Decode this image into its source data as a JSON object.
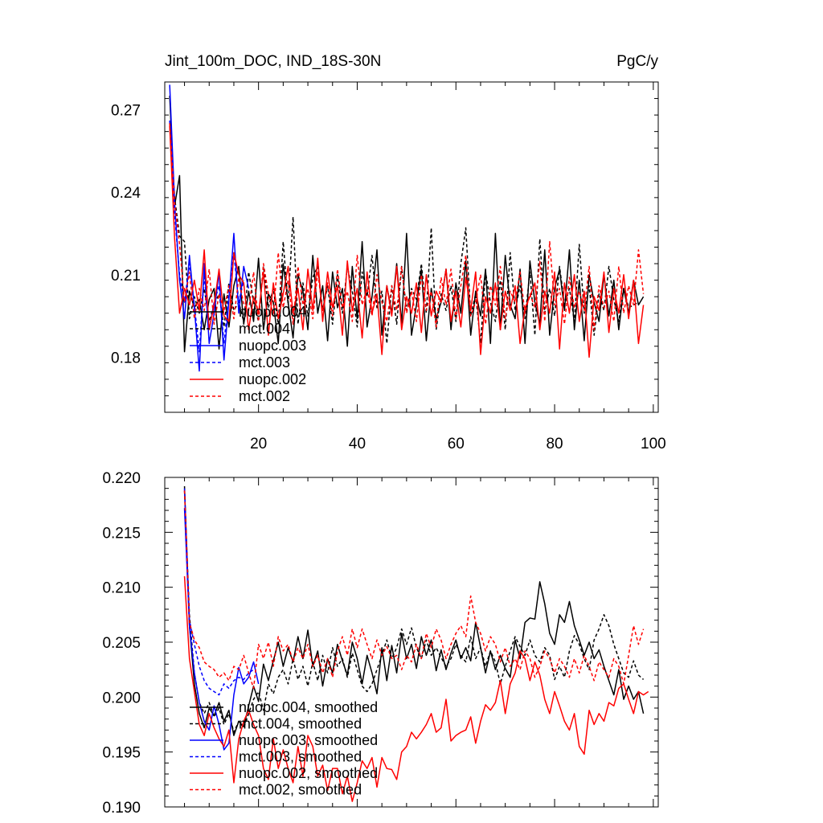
{
  "chart_data": [
    {
      "type": "line",
      "title": "Jint_100m_DOC, IND_18S-30N",
      "units": "PgC/y",
      "xlim": [
        1,
        101
      ],
      "ylim": [
        0.16,
        0.28
      ],
      "xticks": [
        20,
        40,
        60,
        80,
        100
      ],
      "yticks": [
        0.18,
        0.21,
        0.24,
        0.27
      ],
      "ytick_labels": [
        "0.18",
        "0.21",
        "0.24",
        "0.27"
      ],
      "legend_position": "lower-left",
      "series": [
        {
          "name": "nuopc.004",
          "color": "#000000",
          "dash": false,
          "start": 2,
          "values": [
            0.275,
            0.235,
            0.246,
            0.182,
            0.204,
            0.198,
            0.201,
            0.19,
            0.201,
            0.205,
            0.183,
            0.203,
            0.191,
            0.206,
            0.213,
            0.192,
            0.204,
            0.193,
            0.216,
            0.19,
            0.203,
            0.2,
            0.185,
            0.214,
            0.2,
            0.187,
            0.21,
            0.204,
            0.19,
            0.217,
            0.196,
            0.206,
            0.186,
            0.211,
            0.198,
            0.205,
            0.184,
            0.213,
            0.194,
            0.222,
            0.191,
            0.202,
            0.219,
            0.188,
            0.206,
            0.196,
            0.214,
            0.192,
            0.225,
            0.188,
            0.199,
            0.212,
            0.186,
            0.205,
            0.194,
            0.2,
            0.212,
            0.19,
            0.207,
            0.196,
            0.215,
            0.188,
            0.204,
            0.195,
            0.212,
            0.185,
            0.225,
            0.19,
            0.217,
            0.199,
            0.194,
            0.212,
            0.185,
            0.215,
            0.2,
            0.192,
            0.219,
            0.188,
            0.205,
            0.212,
            0.197,
            0.219,
            0.19,
            0.208,
            0.186,
            0.21,
            0.2,
            0.193,
            0.21,
            0.195,
            0.208,
            0.19,
            0.205,
            0.196,
            0.208,
            0.199,
            0.202
          ]
        },
        {
          "name": "mct.004",
          "color": "#000000",
          "dash": true,
          "start": 2,
          "values": [
            0.265,
            0.238,
            0.224,
            0.222,
            0.194,
            0.202,
            0.196,
            0.205,
            0.193,
            0.199,
            0.203,
            0.191,
            0.207,
            0.197,
            0.2,
            0.193,
            0.211,
            0.2,
            0.193,
            0.213,
            0.198,
            0.205,
            0.192,
            0.222,
            0.199,
            0.231,
            0.192,
            0.207,
            0.195,
            0.209,
            0.213,
            0.197,
            0.206,
            0.192,
            0.21,
            0.196,
            0.213,
            0.204,
            0.191,
            0.211,
            0.202,
            0.217,
            0.198,
            0.204,
            0.185,
            0.206,
            0.192,
            0.213,
            0.197,
            0.205,
            0.201,
            0.214,
            0.196,
            0.227,
            0.19,
            0.203,
            0.197,
            0.206,
            0.193,
            0.214,
            0.227,
            0.195,
            0.203,
            0.185,
            0.211,
            0.2,
            0.193,
            0.208,
            0.19,
            0.218,
            0.197,
            0.206,
            0.194,
            0.211,
            0.188,
            0.223,
            0.196,
            0.205,
            0.195,
            0.213,
            0.199,
            0.205,
            0.193,
            0.221,
            0.196,
            0.206,
            0.188,
            0.203,
            0.197,
            0.213,
            0.201,
            0.193,
            0.205,
            0.198,
            0.199,
            0.2
          ]
        },
        {
          "name": "nuopc.003",
          "color": "#0000ff",
          "dash": false,
          "start": 2,
          "values": [
            0.279,
            0.236,
            0.208,
            0.194,
            0.217,
            0.198,
            0.175,
            0.214,
            0.185,
            0.196,
            0.211,
            0.179,
            0.201,
            0.225,
            0.196,
            0.213,
            0.205
          ]
        },
        {
          "name": "mct.003",
          "color": "#0000ff",
          "dash": true,
          "start": 2,
          "values": [
            0.266,
            0.232,
            0.21,
            0.2,
            0.214,
            0.199,
            0.182,
            0.21,
            0.19,
            0.2,
            0.206,
            0.185,
            0.203,
            0.218,
            0.2,
            0.208
          ]
        },
        {
          "name": "nuopc.002",
          "color": "#ff0000",
          "dash": false,
          "start": 2,
          "values": [
            0.264,
            0.223,
            0.196,
            0.205,
            0.199,
            0.208,
            0.197,
            0.219,
            0.19,
            0.199,
            0.212,
            0.195,
            0.193,
            0.218,
            0.21,
            0.207,
            0.19,
            0.202,
            0.196,
            0.211,
            0.188,
            0.207,
            0.194,
            0.203,
            0.213,
            0.196,
            0.205,
            0.19,
            0.212,
            0.197,
            0.216,
            0.193,
            0.211,
            0.198,
            0.206,
            0.188,
            0.215,
            0.197,
            0.205,
            0.187,
            0.211,
            0.196,
            0.203,
            0.181,
            0.206,
            0.195,
            0.213,
            0.19,
            0.202,
            0.196,
            0.207,
            0.189,
            0.21,
            0.195,
            0.204,
            0.2,
            0.212,
            0.193,
            0.204,
            0.191,
            0.209,
            0.197,
            0.211,
            0.181,
            0.202,
            0.196,
            0.207,
            0.19,
            0.204,
            0.197,
            0.206,
            0.185,
            0.198,
            0.202,
            0.207,
            0.19,
            0.204,
            0.196,
            0.211,
            0.183,
            0.207,
            0.196,
            0.21,
            0.193,
            0.204,
            0.18,
            0.202,
            0.197,
            0.211,
            0.189,
            0.205,
            0.196,
            0.21,
            0.194,
            0.208,
            0.185,
            0.199
          ]
        },
        {
          "name": "mct.002",
          "color": "#ff0000",
          "dash": true,
          "start": 2,
          "values": [
            0.265,
            0.236,
            0.221,
            0.2,
            0.211,
            0.194,
            0.205,
            0.197,
            0.212,
            0.192,
            0.203,
            0.197,
            0.206,
            0.194,
            0.209,
            0.199,
            0.197,
            0.211,
            0.193,
            0.214,
            0.203,
            0.195,
            0.218,
            0.198,
            0.208,
            0.192,
            0.213,
            0.199,
            0.205,
            0.194,
            0.211,
            0.197,
            0.207,
            0.195,
            0.212,
            0.198,
            0.204,
            0.193,
            0.217,
            0.199,
            0.205,
            0.195,
            0.21,
            0.2,
            0.193,
            0.206,
            0.197,
            0.213,
            0.196,
            0.204,
            0.193,
            0.21,
            0.197,
            0.204,
            0.191,
            0.209,
            0.199,
            0.212,
            0.194,
            0.206,
            0.217,
            0.195,
            0.2,
            0.21,
            0.192,
            0.206,
            0.199,
            0.213,
            0.194,
            0.204,
            0.2,
            0.211,
            0.196,
            0.203,
            0.198,
            0.215,
            0.193,
            0.222,
            0.199,
            0.205,
            0.192,
            0.209,
            0.198,
            0.204,
            0.197,
            0.213,
            0.19,
            0.206,
            0.198,
            0.204,
            0.193,
            0.213,
            0.196,
            0.206,
            0.199,
            0.219,
            0.203
          ]
        }
      ]
    },
    {
      "type": "line",
      "title": "",
      "xlim": [
        1,
        101
      ],
      "ylim": [
        0.19,
        0.22
      ],
      "xticks": [
        20,
        40,
        60,
        80,
        100
      ],
      "yticks": [
        0.19,
        0.195,
        0.2,
        0.205,
        0.21,
        0.215,
        0.22
      ],
      "ytick_labels": [
        "0.190",
        "0.195",
        "0.200",
        "0.205",
        "0.210",
        "0.215",
        "0.220"
      ],
      "legend_position": "lower-left",
      "series": [
        {
          "name": "nuopc.004, smoothed",
          "color": "#000000",
          "dash": false,
          "start": 5,
          "values": [
            0.2192,
            0.2065,
            0.2012,
            0.1985,
            0.1972,
            0.199,
            0.1983,
            0.1995,
            0.1978,
            0.1988,
            0.1965,
            0.1978,
            0.1973,
            0.1992,
            0.201,
            0.1996,
            0.203,
            0.2015,
            0.2033,
            0.205,
            0.2028,
            0.2045,
            0.2032,
            0.2055,
            0.2035,
            0.2061,
            0.2028,
            0.2042,
            0.201,
            0.2035,
            0.2022,
            0.2048,
            0.2033,
            0.202,
            0.205,
            0.2035,
            0.2012,
            0.2038,
            0.2022,
            0.2003,
            0.2045,
            0.2015,
            0.2047,
            0.2022,
            0.2058,
            0.2035,
            0.2048,
            0.2026,
            0.2055,
            0.2038,
            0.2052,
            0.2024,
            0.2043,
            0.2025,
            0.204,
            0.2052,
            0.2035,
            0.2045,
            0.2033,
            0.2068,
            0.2045,
            0.2022,
            0.2042,
            0.2025,
            0.2038,
            0.2026,
            0.2018,
            0.2052,
            0.2035,
            0.2068,
            0.2072,
            0.2071,
            0.2105,
            0.2085,
            0.2058,
            0.2048,
            0.2075,
            0.2068,
            0.2087,
            0.2065,
            0.2052,
            0.2038,
            0.205,
            0.2035,
            0.2043,
            0.2028,
            0.2015,
            0.2002,
            0.2025,
            0.1998,
            0.201,
            0.1998,
            0.2005,
            0.1985
          ]
        },
        {
          "name": "mct.004, smoothed",
          "color": "#000000",
          "dash": true,
          "start": 5,
          "values": [
            0.2188,
            0.2075,
            0.2022,
            0.1995,
            0.1985,
            0.1995,
            0.1982,
            0.199,
            0.1975,
            0.1985,
            0.1968,
            0.1978,
            0.1972,
            0.1985,
            0.1998,
            0.2005,
            0.1988,
            0.2012,
            0.2003,
            0.2018,
            0.2025,
            0.2012,
            0.2035,
            0.2016,
            0.2028,
            0.201,
            0.2032,
            0.2015,
            0.2038,
            0.2022,
            0.2045,
            0.2028,
            0.2035,
            0.2018,
            0.204,
            0.2025,
            0.201,
            0.2005,
            0.2012,
            0.2025,
            0.2038,
            0.2052,
            0.2035,
            0.2045,
            0.2062,
            0.2048,
            0.2063,
            0.2045,
            0.2035,
            0.2052,
            0.2038,
            0.2045,
            0.2036,
            0.2028,
            0.2035,
            0.2048,
            0.2038,
            0.2032,
            0.2055,
            0.2035,
            0.2045,
            0.2028,
            0.2042,
            0.2032,
            0.2012,
            0.2028,
            0.2042,
            0.2055,
            0.2046,
            0.2038,
            0.2052,
            0.2038,
            0.2032,
            0.2045,
            0.2038,
            0.2016,
            0.2028,
            0.2018,
            0.2042,
            0.2056,
            0.2048,
            0.2035,
            0.2025,
            0.2052,
            0.2062,
            0.2075,
            0.2065,
            0.2048,
            0.2035,
            0.2022,
            0.2018,
            0.2033,
            0.202,
            0.2016
          ]
        },
        {
          "name": "nuopc.003, smoothed",
          "color": "#0000ff",
          "dash": false,
          "start": 5,
          "values": [
            0.2172,
            0.2065,
            0.2022,
            0.1995,
            0.1978,
            0.197,
            0.1992,
            0.1975,
            0.1952,
            0.1958,
            0.2002,
            0.2027,
            0.2012,
            0.2018,
            0.2032,
            0.2012
          ]
        },
        {
          "name": "mct.003, smoothed",
          "color": "#0000ff",
          "dash": true,
          "start": 5,
          "values": [
            0.219,
            0.207,
            0.2048,
            0.2028,
            0.2015,
            0.2008,
            0.2005,
            0.2002,
            0.2012,
            0.2008,
            0.2015,
            0.2018,
            0.2016,
            0.2022,
            0.2025
          ]
        },
        {
          "name": "nuopc.002, smoothed",
          "color": "#ff0000",
          "dash": false,
          "start": 5,
          "values": [
            0.211,
            0.2035,
            0.2005,
            0.1975,
            0.1965,
            0.1985,
            0.1972,
            0.1962,
            0.1955,
            0.197,
            0.1922,
            0.1962,
            0.1978,
            0.1988,
            0.1975,
            0.1965,
            0.1935,
            0.1925,
            0.1962,
            0.1935,
            0.1952,
            0.1935,
            0.1922,
            0.1955,
            0.1928,
            0.1965,
            0.1955,
            0.1928,
            0.1938,
            0.1915,
            0.1935,
            0.1935,
            0.1912,
            0.1928,
            0.1905,
            0.1922,
            0.1942,
            0.1935,
            0.1945,
            0.1918,
            0.1945,
            0.1935,
            0.1934,
            0.1925,
            0.195,
            0.1955,
            0.1968,
            0.1962,
            0.1968,
            0.1975,
            0.1985,
            0.1968,
            0.1972,
            0.1998,
            0.196,
            0.1965,
            0.1968,
            0.197,
            0.1982,
            0.1958,
            0.1978,
            0.1993,
            0.1988,
            0.1995,
            0.2015,
            0.1985,
            0.2012,
            0.2022,
            0.2042,
            0.2035,
            0.2015,
            0.2032,
            0.202,
            0.1998,
            0.1985,
            0.2005,
            0.1992,
            0.1978,
            0.197,
            0.1985,
            0.1955,
            0.1948,
            0.1988,
            0.1975,
            0.1985,
            0.1978,
            0.1995,
            0.1992,
            0.2008,
            0.2012,
            0.1998,
            0.1985,
            0.2005,
            0.2002,
            0.2005
          ]
        },
        {
          "name": "mct.002, smoothed",
          "color": "#ff0000",
          "dash": true,
          "start": 5,
          "values": [
            0.2188,
            0.2068,
            0.2052,
            0.2045,
            0.2032,
            0.2028,
            0.2025,
            0.2018,
            0.2022,
            0.2015,
            0.2028,
            0.2025,
            0.2038,
            0.2022,
            0.2008,
            0.2048,
            0.2035,
            0.205,
            0.2028,
            0.2055,
            0.2042,
            0.2048,
            0.2032,
            0.2045,
            0.2035,
            0.2048,
            0.2028,
            0.2038,
            0.2022,
            0.2035,
            0.2018,
            0.2042,
            0.2055,
            0.2038,
            0.2062,
            0.2045,
            0.2062,
            0.2048,
            0.2035,
            0.2052,
            0.2038,
            0.2046,
            0.2035,
            0.2038,
            0.2025,
            0.2038,
            0.2032,
            0.2048,
            0.2035,
            0.2058,
            0.2045,
            0.2062,
            0.2052,
            0.2035,
            0.2048,
            0.2058,
            0.2065,
            0.2055,
            0.2092,
            0.2068,
            0.2058,
            0.2042,
            0.2055,
            0.2048,
            0.2032,
            0.2045,
            0.2028,
            0.2035,
            0.2025,
            0.2042,
            0.2035,
            0.2018,
            0.2028,
            0.2042,
            0.2035,
            0.2022,
            0.2035,
            0.2028,
            0.2018,
            0.2035,
            0.2022,
            0.2038,
            0.2028,
            0.2015,
            0.2032,
            0.2025,
            0.2018,
            0.2035,
            0.2028,
            0.2012,
            0.2038,
            0.2065,
            0.2048,
            0.2062
          ]
        }
      ]
    }
  ]
}
